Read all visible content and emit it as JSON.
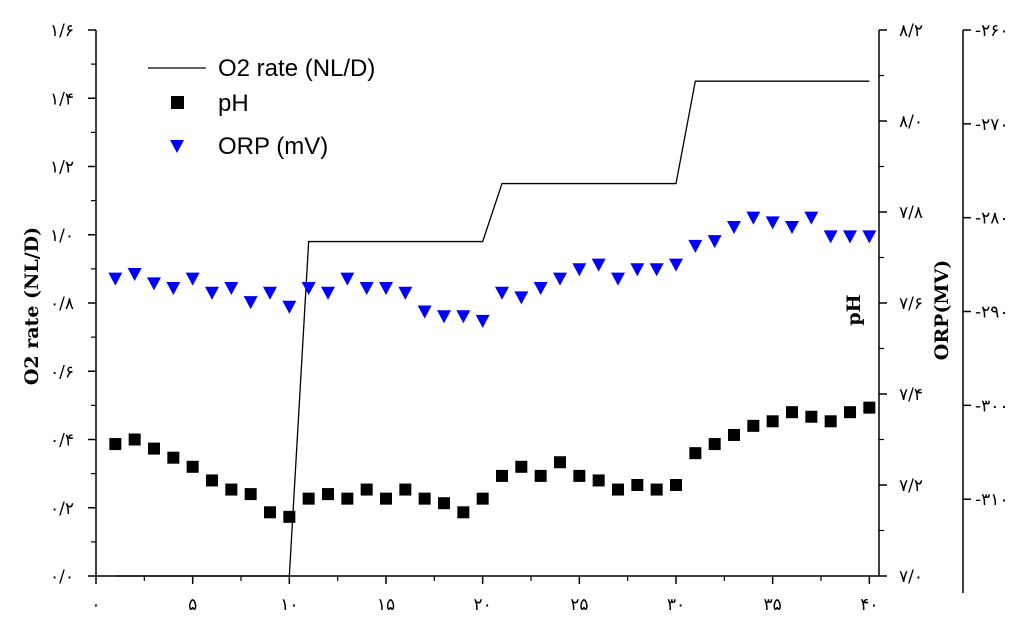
{
  "chart_data": {
    "type": "line",
    "title": "",
    "x": {
      "range": [
        0,
        40.5
      ],
      "ticks": [
        0,
        5,
        10,
        15,
        20,
        25,
        30,
        35,
        40
      ],
      "tick_labels": [
        "۰",
        "۵",
        "۱۰",
        "۱۵",
        "۲۰",
        "۲۵",
        "۳۰",
        "۳۵",
        "۴۰"
      ],
      "label": ""
    },
    "y_left": {
      "label": "O2 rate (NL/D)",
      "range": [
        0,
        1.6
      ],
      "ticks": [
        0,
        0.2,
        0.4,
        0.6,
        0.8,
        1.0,
        1.2,
        1.4,
        1.6
      ],
      "tick_labels": [
        "۰/۰",
        "۰/۲",
        "۰/۴",
        "۰/۶",
        "۰/۸",
        "۱/۰",
        "۱/۲",
        "۱/۴",
        "۱/۶"
      ]
    },
    "y_ph": {
      "label": "pH",
      "range": [
        7.0,
        8.2
      ],
      "ticks": [
        7.0,
        7.2,
        7.4,
        7.6,
        7.8,
        8.0,
        8.2
      ],
      "tick_labels": [
        "۷/۰",
        "۷/۲",
        "۷/۴",
        "۷/۶",
        "۷/۸",
        "۸/۰",
        "۸/۲"
      ]
    },
    "y_orp": {
      "label": "ORP(MV)",
      "range": [
        -320,
        -260
      ],
      "ticks": [
        -310,
        -300,
        -290,
        -280,
        -270,
        -260
      ],
      "tick_labels": [
        "-۳۱۰",
        "-۳۰۰",
        "-۲۹۰",
        "-۲۸۰",
        "-۲۷۰",
        "-۲۶۰"
      ]
    },
    "legend": {
      "placement": "top-left",
      "items": [
        "O2 rate (NL/D)",
        "pH",
        "ORP (mV)"
      ]
    },
    "series": [
      {
        "name": "O2 rate (NL/D)",
        "axis": "y_left",
        "style": "line",
        "color": "#000000",
        "x": [
          1,
          10,
          11,
          20,
          21,
          30,
          31,
          40
        ],
        "y": [
          0.0,
          0.0,
          0.98,
          0.98,
          1.15,
          1.15,
          1.45,
          1.45
        ]
      },
      {
        "name": "pH",
        "axis": "y_ph",
        "style": "square",
        "color": "#000000",
        "x": [
          1,
          2,
          3,
          4,
          5,
          6,
          7,
          8,
          9,
          10,
          11,
          12,
          13,
          14,
          15,
          16,
          17,
          18,
          19,
          20,
          21,
          22,
          23,
          24,
          25,
          26,
          27,
          28,
          29,
          30,
          31,
          32,
          33,
          34,
          35,
          36,
          37,
          38,
          39,
          40
        ],
        "y": [
          7.29,
          7.3,
          7.28,
          7.26,
          7.24,
          7.21,
          7.19,
          7.18,
          7.14,
          7.13,
          7.17,
          7.18,
          7.17,
          7.19,
          7.17,
          7.19,
          7.17,
          7.16,
          7.14,
          7.17,
          7.22,
          7.24,
          7.22,
          7.25,
          7.22,
          7.21,
          7.19,
          7.2,
          7.19,
          7.2,
          7.27,
          7.29,
          7.31,
          7.33,
          7.34,
          7.36,
          7.35,
          7.34,
          7.36,
          7.37
        ]
      },
      {
        "name": "ORP (mV)",
        "axis": "y_orp",
        "style": "triangle-down",
        "color": "#0000ff",
        "x": [
          1,
          2,
          3,
          4,
          5,
          6,
          7,
          8,
          9,
          10,
          11,
          12,
          13,
          14,
          15,
          16,
          17,
          18,
          19,
          20,
          21,
          22,
          23,
          24,
          25,
          26,
          27,
          28,
          29,
          30,
          31,
          32,
          33,
          34,
          35,
          36,
          37,
          38,
          39,
          40
        ],
        "y": [
          -286.5,
          -286,
          -287,
          -287.5,
          -286.5,
          -288,
          -287.5,
          -289,
          -288,
          -289.5,
          -287.5,
          -288,
          -286.5,
          -287.5,
          -287.5,
          -288,
          -290,
          -290.5,
          -290.5,
          -291,
          -288,
          -288.5,
          -287.5,
          -286.5,
          -285.5,
          -285,
          -286.5,
          -285.5,
          -285.5,
          -285,
          -283,
          -282.5,
          -281,
          -280,
          -280.5,
          -281,
          -280,
          -282,
          -282,
          -282
        ]
      }
    ]
  }
}
